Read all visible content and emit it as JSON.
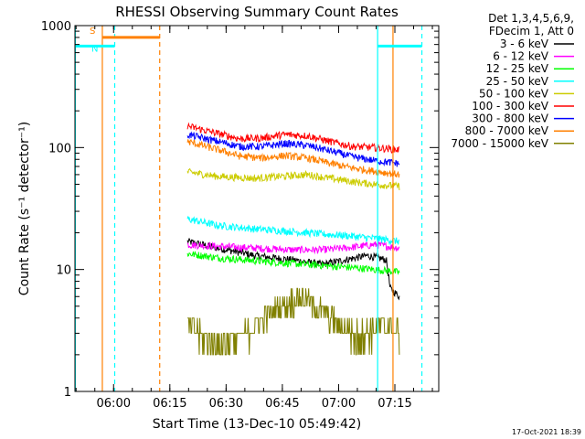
{
  "chart_data": {
    "type": "line",
    "title": "RHESSI Observing Summary Count Rates",
    "xlabel": "Start Time (13-Dec-10 05:49:42)",
    "ylabel": "Count Rate (s⁻¹ detector⁻¹)",
    "yscale": "log",
    "ylim": [
      1,
      1000
    ],
    "xlim_minutes": [
      0,
      97
    ],
    "x_unit": "minutes after 05:49:42",
    "x_ticks": [
      {
        "label": "06:00",
        "t": 10.3
      },
      {
        "label": "06:15",
        "t": 25.3
      },
      {
        "label": "06:30",
        "t": 40.3
      },
      {
        "label": "06:45",
        "t": 55.3
      },
      {
        "label": "07:00",
        "t": 70.3
      },
      {
        "label": "07:15",
        "t": 85.3
      }
    ],
    "y_ticks": [
      {
        "label": "1",
        "v": 1
      },
      {
        "label": "10",
        "v": 10
      },
      {
        "label": "100",
        "v": 100
      },
      {
        "label": "1000",
        "v": 1000
      }
    ],
    "legend": {
      "position": "top-right",
      "header": [
        "Det 1,3,4,5,6,9,",
        "FDecim 1, Att 0"
      ]
    },
    "series": [
      {
        "name": "3 - 6 keV",
        "color": "#000000",
        "x": [
          30,
          38,
          48,
          58,
          66,
          72,
          78,
          83,
          84,
          86.5
        ],
        "y": [
          17,
          15,
          13,
          12,
          11,
          12,
          13,
          12,
          7,
          6
        ]
      },
      {
        "name": "6 - 12 keV",
        "color": "#ff00ff",
        "x": [
          30,
          38,
          48,
          58,
          66,
          72,
          80,
          86.5
        ],
        "y": [
          16,
          15.5,
          15,
          14.5,
          14.5,
          15,
          16,
          15
        ]
      },
      {
        "name": "12 - 25 keV",
        "color": "#00ff00",
        "x": [
          30,
          38,
          48,
          58,
          66,
          72,
          80,
          86.5
        ],
        "y": [
          13.5,
          12.5,
          11.8,
          11.2,
          10.8,
          10.5,
          10,
          9.5
        ]
      },
      {
        "name": "25 - 50 keV",
        "color": "#00ffff",
        "x": [
          30,
          38,
          48,
          58,
          66,
          72,
          80,
          86.5
        ],
        "y": [
          26,
          23,
          21.5,
          20.5,
          19.5,
          19,
          18,
          17
        ]
      },
      {
        "name": "50 - 100 keV",
        "color": "#cccc00",
        "x": [
          30,
          38,
          48,
          55,
          62,
          68,
          75,
          80,
          86.5
        ],
        "y": [
          63,
          58,
          56,
          58,
          60,
          56,
          52,
          50,
          48
        ]
      },
      {
        "name": "100 - 300 keV",
        "color": "#ff0000",
        "x": [
          30,
          36,
          44,
          50,
          56,
          62,
          68,
          74,
          80,
          86.5
        ],
        "y": [
          150,
          135,
          118,
          120,
          128,
          125,
          112,
          102,
          100,
          96
        ]
      },
      {
        "name": "300 - 800 keV",
        "color": "#0000ff",
        "x": [
          30,
          36,
          44,
          50,
          56,
          62,
          68,
          74,
          80,
          86.5
        ],
        "y": [
          128,
          116,
          102,
          102,
          108,
          104,
          94,
          84,
          78,
          74
        ]
      },
      {
        "name": "800 - 7000 keV",
        "color": "#ff8000",
        "x": [
          30,
          36,
          44,
          50,
          56,
          62,
          68,
          74,
          80,
          86.5
        ],
        "y": [
          112,
          100,
          85,
          82,
          86,
          82,
          74,
          68,
          64,
          60
        ]
      },
      {
        "name": "7000 - 15000 keV",
        "color": "#808000",
        "x": [
          30,
          34,
          38,
          42,
          46,
          50,
          55,
          60,
          64,
          68,
          72,
          76,
          80,
          84,
          86.5
        ],
        "y": [
          3.5,
          2.8,
          2.5,
          2.5,
          3,
          4,
          5,
          6,
          5,
          4,
          3.2,
          2.8,
          3.3,
          3.6,
          3
        ]
      }
    ],
    "annotations": [
      {
        "label": "S",
        "color": "#ff8000",
        "x_start": 7.3,
        "x_end": 22.6,
        "y": 800
      },
      {
        "label": "N",
        "color": "#00ffff",
        "x_start": 0,
        "x_end": 10.6,
        "y": 680
      },
      {
        "label": "",
        "color": "#00ffff",
        "x_start": 80.7,
        "x_end": 92.5,
        "y": 680
      }
    ],
    "vertical_lines": [
      {
        "color": "#ff8000",
        "style": "solid",
        "t": 7.3
      },
      {
        "color": "#ff8000",
        "style": "dashed",
        "t": 22.6
      },
      {
        "color": "#ff8000",
        "style": "solid",
        "t": 84.8
      },
      {
        "color": "#00ffff",
        "style": "solid",
        "t": 0.1
      },
      {
        "color": "#00ffff",
        "style": "dashed",
        "t": 10.6
      },
      {
        "color": "#00ffff",
        "style": "solid",
        "t": 80.7
      },
      {
        "color": "#00ffff",
        "style": "dashed",
        "t": 92.5
      }
    ]
  },
  "footer": {
    "timestamp": "17-Oct-2021 18:39"
  }
}
